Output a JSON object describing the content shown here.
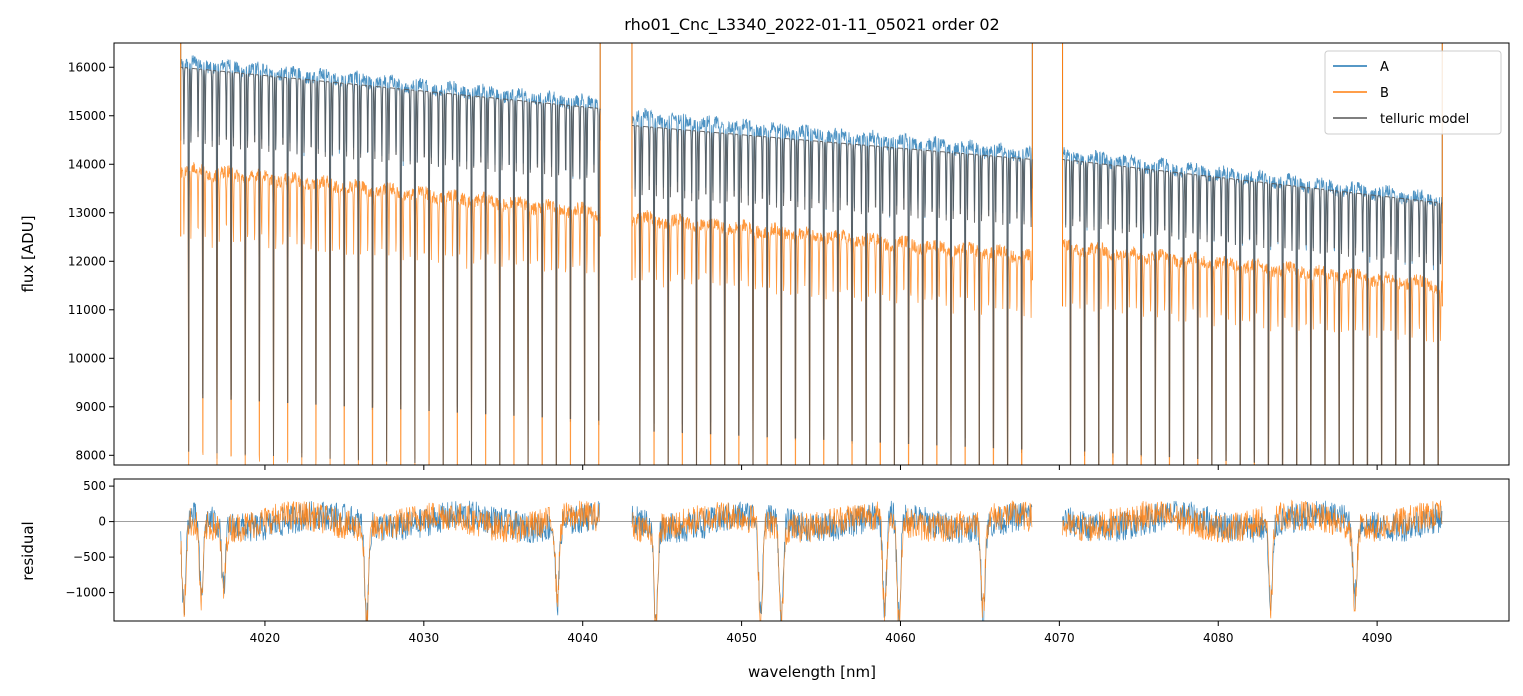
{
  "chart_data": {
    "type": "line",
    "title": "rho01_Cnc_L3340_2022-01-11_05021  order 02",
    "xlabel": "wavelength [nm]",
    "xlim": [
      4010.5,
      4098.3
    ],
    "x_ticks": [
      4020,
      4030,
      4040,
      4050,
      4060,
      4070,
      4080,
      4090
    ],
    "x_tick_labels": [
      "4020",
      "4030",
      "4040",
      "4050",
      "4060",
      "4070",
      "4080",
      "4090"
    ],
    "panels": [
      {
        "id": "flux",
        "ylabel": "flux [ADU]",
        "ylim": [
          7800,
          16500
        ],
        "y_ticks": [
          8000,
          9000,
          10000,
          11000,
          12000,
          13000,
          14000,
          15000,
          16000
        ],
        "y_tick_labels": [
          "8000",
          "9000",
          "10000",
          "11000",
          "12000",
          "13000",
          "14000",
          "15000",
          "16000"
        ],
        "legend_position": "top-right",
        "series": [
          {
            "name": "A",
            "color": "#1f77b4",
            "segments": [
              {
                "x_start": 4014.7,
                "x_end": 4041.1,
                "continuum_start": 16100,
                "continuum_end": 15250
              },
              {
                "x_start": 4043.1,
                "x_end": 4068.3,
                "continuum_start": 15000,
                "continuum_end": 14200
              },
              {
                "x_start": 4070.2,
                "x_end": 4094.1,
                "continuum_start": 14200,
                "continuum_end": 13250
              }
            ]
          },
          {
            "name": "B",
            "color": "#ff7f0e",
            "segments": [
              {
                "x_start": 4014.7,
                "x_end": 4041.1,
                "continuum_start": 13900,
                "continuum_end": 13000
              },
              {
                "x_start": 4043.1,
                "x_end": 4068.3,
                "continuum_start": 12900,
                "continuum_end": 12100
              },
              {
                "x_start": 4070.2,
                "x_end": 4094.1,
                "continuum_start": 12300,
                "continuum_end": 11500
              }
            ]
          },
          {
            "name": "telluric model",
            "color": "#555555",
            "segments": [
              {
                "x_start": 4014.7,
                "x_end": 4041.1,
                "continuum_start": 16000,
                "continuum_end": 15150
              },
              {
                "x_start": 4043.1,
                "x_end": 4068.3,
                "continuum_start": 14800,
                "continuum_end": 14100
              },
              {
                "x_start": 4070.2,
                "x_end": 4094.1,
                "continuum_start": 14100,
                "continuum_end": 13200
              }
            ]
          }
        ]
      },
      {
        "id": "residual",
        "ylabel": "residual",
        "ylim": [
          -1400,
          600
        ],
        "y_ticks": [
          -1000,
          -500,
          0,
          500
        ],
        "y_tick_labels": [
          "−1000",
          "−500",
          "0",
          "500"
        ],
        "zero_line": true,
        "series": [
          {
            "name": "A",
            "color": "#1f77b4"
          },
          {
            "name": "B",
            "color": "#ff7f0e"
          }
        ],
        "features": [
          {
            "x": 4014.9,
            "depth": -1300
          },
          {
            "x": 4016.0,
            "depth": -1100
          },
          {
            "x": 4017.4,
            "depth": -900
          },
          {
            "x": 4026.4,
            "depth": -1350
          },
          {
            "x": 4038.4,
            "depth": -1100
          },
          {
            "x": 4044.6,
            "depth": -1400
          },
          {
            "x": 4051.2,
            "depth": -1400
          },
          {
            "x": 4052.5,
            "depth": -1400
          },
          {
            "x": 4059.0,
            "depth": -1300
          },
          {
            "x": 4059.9,
            "depth": -1400
          },
          {
            "x": 4065.2,
            "depth": -1300
          },
          {
            "x": 4083.3,
            "depth": -1250
          },
          {
            "x": 4088.6,
            "depth": -1100
          }
        ]
      }
    ]
  }
}
